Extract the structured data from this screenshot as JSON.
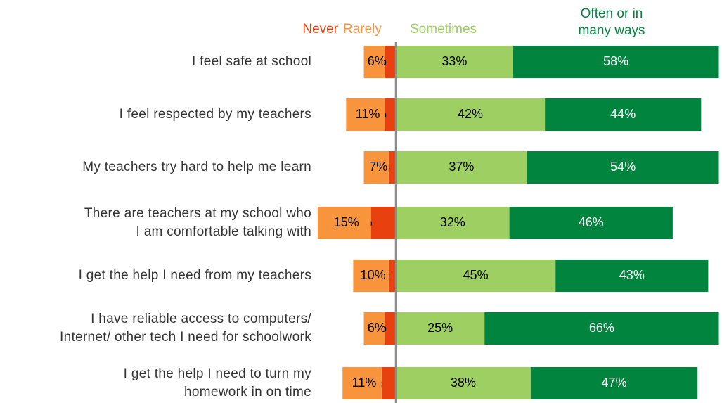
{
  "chart_data": {
    "type": "diverging-bar",
    "categories": [
      "I feel safe at school",
      "I feel respected by my teachers",
      "My teachers try hard to help me learn",
      "There are teachers at my school who\nI am comfortable talking with",
      "I get the help I need from my teachers",
      "I have reliable access to computers/\nInternet/ other tech I need for schoolwork",
      "I get the help I need to turn my\nhomework in on time"
    ],
    "series": [
      {
        "name": "Never",
        "color": "#e8400f",
        "side": "left",
        "values": [
          3,
          3,
          2,
          7,
          2,
          3,
          4
        ],
        "value_labels": [
          "3%",
          "3%",
          "2%",
          "7%",
          "2%",
          "3%",
          "4%"
        ]
      },
      {
        "name": "Rarely",
        "color": "#f7943c",
        "side": "left",
        "values": [
          6,
          11,
          7,
          15,
          10,
          6,
          11
        ],
        "value_labels": [
          "6%",
          "11%",
          "7%",
          "15%",
          "10%",
          "6%",
          "11%"
        ]
      },
      {
        "name": "Sometimes",
        "color": "#9dcf62",
        "side": "right",
        "values": [
          33,
          42,
          37,
          32,
          45,
          25,
          38
        ],
        "value_labels": [
          "33%",
          "42%",
          "37%",
          "32%",
          "45%",
          "25%",
          "38%"
        ]
      },
      {
        "name": "Often or in\nmany ways",
        "color": "#00843e",
        "side": "right",
        "values": [
          58,
          44,
          54,
          46,
          43,
          66,
          47
        ],
        "value_labels": [
          "58%",
          "44%",
          "54%",
          "46%",
          "43%",
          "66%",
          "47%"
        ]
      }
    ]
  }
}
